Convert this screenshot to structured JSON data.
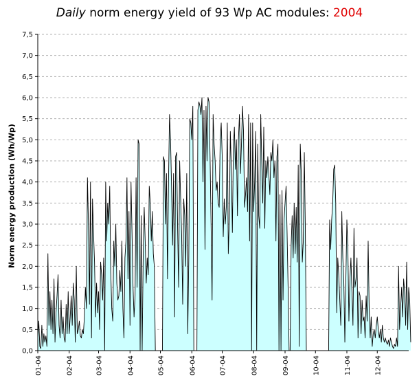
{
  "header": {
    "title_italic": "Daily",
    "title_main": "norm energy yield of 93 Wp AC modules:",
    "title_year": "2004"
  },
  "colors": {
    "fill": "#ccffff",
    "line": "#000000",
    "year": "#e00000",
    "grid": "#b0b0b0"
  },
  "chart_data": {
    "type": "area",
    "title": "Daily norm energy yield of 93 Wp AC modules: 2004",
    "ylabel": "Norm energy production (Wh/Wp)",
    "xlabel": "",
    "ylim": [
      0,
      7.5
    ],
    "yticks": [
      "0,0",
      "0,5",
      "1,0",
      "1,5",
      "2,0",
      "2,5",
      "3,0",
      "3,5",
      "4,0",
      "4,5",
      "5,0",
      "5,5",
      "6,0",
      "6,5",
      "7,0",
      "7,5"
    ],
    "xticks": [
      "01-04",
      "02-04",
      "03-04",
      "04-04",
      "05-04",
      "06-04",
      "07-04",
      "08-04",
      "09-04",
      "10-04",
      "11-04",
      "12-04"
    ],
    "grid": true,
    "series": [
      {
        "x_start_day": 1,
        "values": [
          0.3,
          0.7,
          0.1,
          0.05,
          0.6,
          0.1,
          0.4,
          0.2,
          0.35,
          0.1,
          2.3,
          0.6,
          1.4,
          0.5,
          1.2,
          0.4,
          1.7,
          0.2,
          0.9,
          1.3,
          1.8,
          0.6,
          0.3,
          1.2,
          0.4,
          0.8,
          0.3,
          0.2,
          1.1,
          0.4,
          1.4,
          0.4,
          0.8,
          1.3,
          0.6,
          1.6,
          1.2,
          0.2,
          2.0,
          0.4,
          0.5,
          0.7,
          0.35,
          0.3,
          0.5,
          0.4,
          0.8,
          1.5,
          1.0,
          4.1,
          3.0,
          1.1,
          4.0,
          0.3,
          3.6,
          2.8,
          2.1,
          0.8,
          1.6,
          0.9,
          1.4,
          0.5,
          2.1,
          1.8,
          1.2,
          2.2,
          0.0,
          4.0,
          2.6,
          3.5,
          3.0,
          3.9,
          1.9,
          1.0,
          0.7,
          2.6,
          2.0,
          3.0,
          1.6,
          1.2,
          1.3,
          1.9,
          1.4,
          2.6,
          1.0,
          0.3,
          2.2,
          2.6,
          4.1,
          1.7,
          3.3,
          0.6,
          4.0,
          2.8,
          1.5,
          0.8,
          1.3,
          4.1,
          1.5,
          5.0,
          4.9,
          0.0,
          3.2,
          0.0,
          2.2,
          3.4,
          2.6,
          1.6,
          2.2,
          1.8,
          3.9,
          3.5,
          2.6,
          3.3,
          2.3,
          2.0,
          0.0,
          0.0,
          0.0,
          0.0,
          0.0,
          0.0,
          0.0,
          0.0,
          4.6,
          4.5,
          3.0,
          4.2,
          1.7,
          4.0,
          5.6,
          5.0,
          3.9,
          2.5,
          4.2,
          0.8,
          4.6,
          4.7,
          2.9,
          1.5,
          4.5,
          3.6,
          2.7,
          1.1,
          3.6,
          3.2,
          2.0,
          4.2,
          0.4,
          2.2,
          5.5,
          5.4,
          5.0,
          5.8,
          0.0,
          0.0,
          0.0,
          0.0,
          5.7,
          5.9,
          5.8,
          5.6,
          6.0,
          4.0,
          5.7,
          2.4,
          5.8,
          4.5,
          6.0,
          5.9,
          4.6,
          3.0,
          1.2,
          5.6,
          4.9,
          4.5,
          3.8,
          4.0,
          3.5,
          3.4,
          5.0,
          5.4,
          4.6,
          2.7,
          3.6,
          3.0,
          3.4,
          5.4,
          2.3,
          3.1,
          5.2,
          4.3,
          2.8,
          4.8,
          5.3,
          4.3,
          5.0,
          3.2,
          5.0,
          5.6,
          4.2,
          4.9,
          5.8,
          5.2,
          3.4,
          3.7,
          4.1,
          3.3,
          5.6,
          2.6,
          5.4,
          0.0,
          5.4,
          3.3,
          4.0,
          5.2,
          0.0,
          4.9,
          3.2,
          2.9,
          5.6,
          4.5,
          3.5,
          5.3,
          2.9,
          4.5,
          4.1,
          4.6,
          4.2,
          3.7,
          4.7,
          4.5,
          5.0,
          4.1,
          4.5,
          2.6,
          4.6,
          4.9,
          0.0,
          3.7,
          0.0,
          3.8,
          1.2,
          3.1,
          3.5,
          3.9,
          2.8,
          1.5,
          0.0,
          0.0,
          2.5,
          3.2,
          2.2,
          3.5,
          2.3,
          3.4,
          2.1,
          4.4,
          0.1,
          4.9,
          4.2,
          2.1,
          2.6,
          4.7,
          2.9,
          0.0,
          0.0,
          0.0,
          0.0,
          0.0,
          0.0,
          0.0,
          0.0,
          0.0,
          0.0,
          0.0,
          0.0,
          0.0,
          0.0,
          0.0,
          0.0,
          0.0,
          0.0,
          0.0,
          0.0,
          0.0,
          0.0,
          0.0,
          3.1,
          2.4,
          3.1,
          3.5,
          4.3,
          4.4,
          3.5,
          0.9,
          2.2,
          1.8,
          1.2,
          0.6,
          3.3,
          2.2,
          1.6,
          0.2,
          1.7,
          3.1,
          2.4,
          0.7,
          1.7,
          2.2,
          1.4,
          0.6,
          2.9,
          1.5,
          1.7,
          2.2,
          0.3,
          1.4,
          1.3,
          0.4,
          1.2,
          0.7,
          0.8,
          0.3,
          1.3,
          0.7,
          2.6,
          1.0,
          0.3,
          0.8,
          0.1,
          0.4,
          0.5,
          0.3,
          0.6,
          0.8,
          0.5,
          0.3,
          0.5,
          0.2,
          0.6,
          0.3,
          0.2,
          0.3,
          0.2,
          0.15,
          0.25,
          0.1,
          0.3,
          0.2,
          0.1,
          0.05,
          0.15,
          0.1,
          0.3,
          0.1,
          2.0,
          0.5,
          1.0,
          1.5,
          0.8,
          1.7,
          1.4,
          0.6,
          2.1,
          0.5,
          1.5,
          1.2,
          0.2
        ]
      }
    ]
  }
}
